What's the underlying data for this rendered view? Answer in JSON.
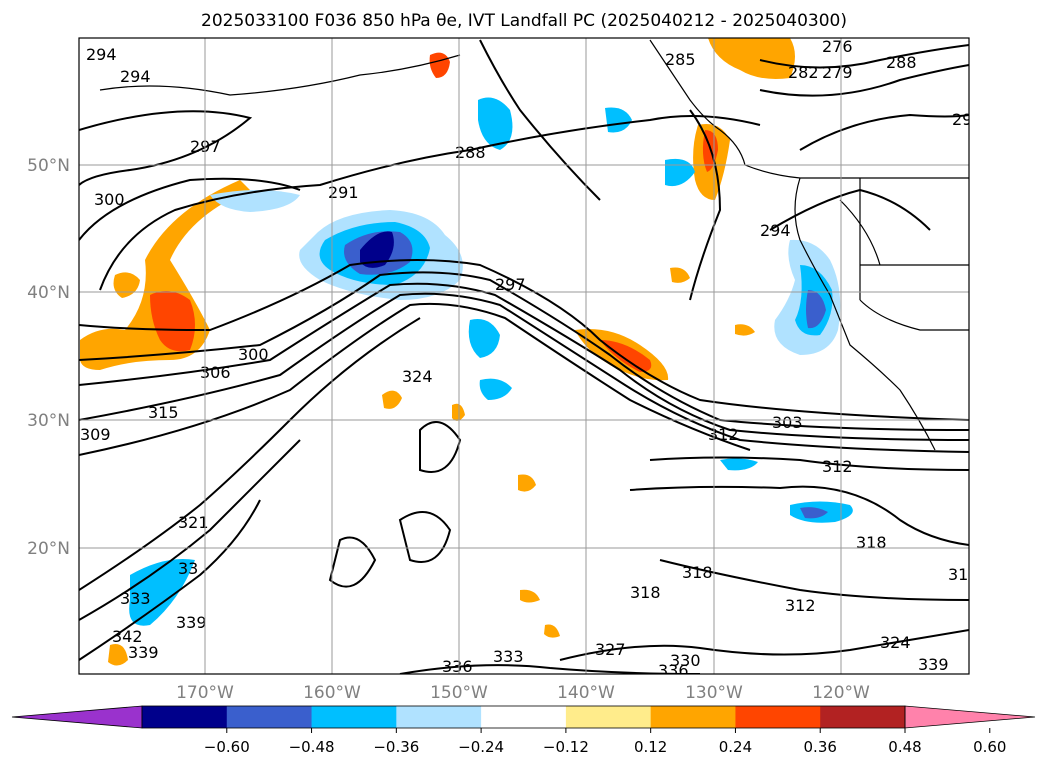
{
  "title": "2025033100 F036 850 hPa θe, IVT Landfall PC (2025040212 - 2025040300)",
  "map": {
    "lat_ticks": [
      "50°N",
      "40°N",
      "30°N",
      "20°N"
    ],
    "lon_ticks": [
      "170°W",
      "160°W",
      "150°W",
      "140°W",
      "130°W",
      "120°W"
    ],
    "gridlines": true
  },
  "colorbar": {
    "orientation": "horizontal",
    "extend": "both",
    "ticks": [
      "−0.60",
      "−0.48",
      "−0.36",
      "−0.24",
      "−0.12",
      "0.12",
      "0.24",
      "0.36",
      "0.48",
      "0.60"
    ],
    "colors": [
      "#9a32cd",
      "#00008b",
      "#3a5fcd",
      "#00bfff",
      "#b0e2ff",
      "#ffffff",
      "#ffec8b",
      "#ffa500",
      "#ff4500",
      "#b22222",
      "#ff82ab"
    ]
  },
  "contour_labels": {
    "a": "294",
    "b": "294",
    "c": "297",
    "d": "300",
    "e": "291",
    "f": "288",
    "g": "285",
    "h": "276",
    "i": "282",
    "j": "279",
    "k": "288",
    "l": "29",
    "m": "294",
    "n": "297",
    "o": "300",
    "p": "306",
    "q": "315",
    "r": "309",
    "s": "324",
    "t": "312",
    "u": "303",
    "v": "312",
    "w": "321",
    "x": "318",
    "y": "318",
    "z": "318",
    "aa": "312",
    "ab": "31",
    "ac": "336",
    "ad": "333",
    "ae": "327",
    "af": "330",
    "ag": "336",
    "ah": "333",
    "ai": "342",
    "aj": "339",
    "ak": "33",
    "al": "339",
    "am": "324",
    "an": "339"
  }
}
